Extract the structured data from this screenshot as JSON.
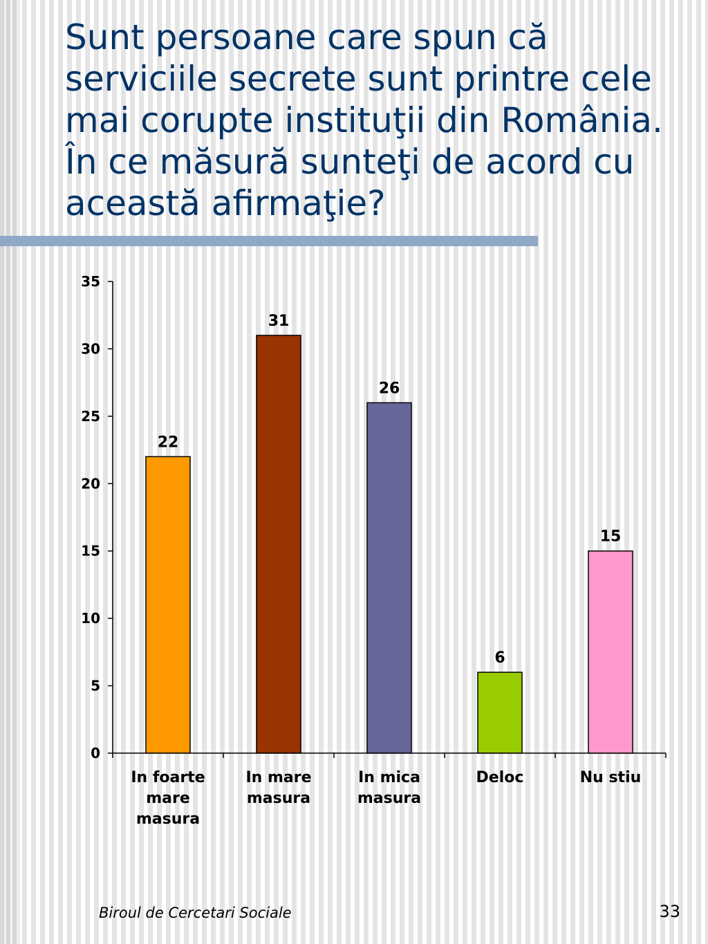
{
  "slide": {
    "title": "Sunt persoane care spun că serviciile secrete sunt printre cele mai corupte instituţii din România. În ce măsură sunteţi de acord cu această afirmaţie?",
    "footer": "Biroul de Cercetari Sociale",
    "page_number": "33"
  },
  "chart_data": {
    "type": "bar",
    "categories": [
      "In foarte mare masura",
      "In mare masura",
      "In mica masura",
      "Deloc",
      "Nu stiu"
    ],
    "category_lines": [
      [
        "In foarte",
        "mare",
        "masura"
      ],
      [
        "In mare",
        "masura"
      ],
      [
        "In mica",
        "masura"
      ],
      [
        "Deloc"
      ],
      [
        "Nu stiu"
      ]
    ],
    "values": [
      22,
      31,
      26,
      6,
      15
    ],
    "colors": [
      "#ff9900",
      "#993300",
      "#666699",
      "#99cc00",
      "#ff99cc"
    ],
    "data_labels": [
      "22",
      "31",
      "26",
      "6",
      "15"
    ],
    "ylim": [
      0,
      35
    ],
    "yticks": [
      0,
      5,
      10,
      15,
      20,
      25,
      30,
      35
    ],
    "title": "",
    "xlabel": "",
    "ylabel": "",
    "grid": false,
    "legend": "none"
  }
}
